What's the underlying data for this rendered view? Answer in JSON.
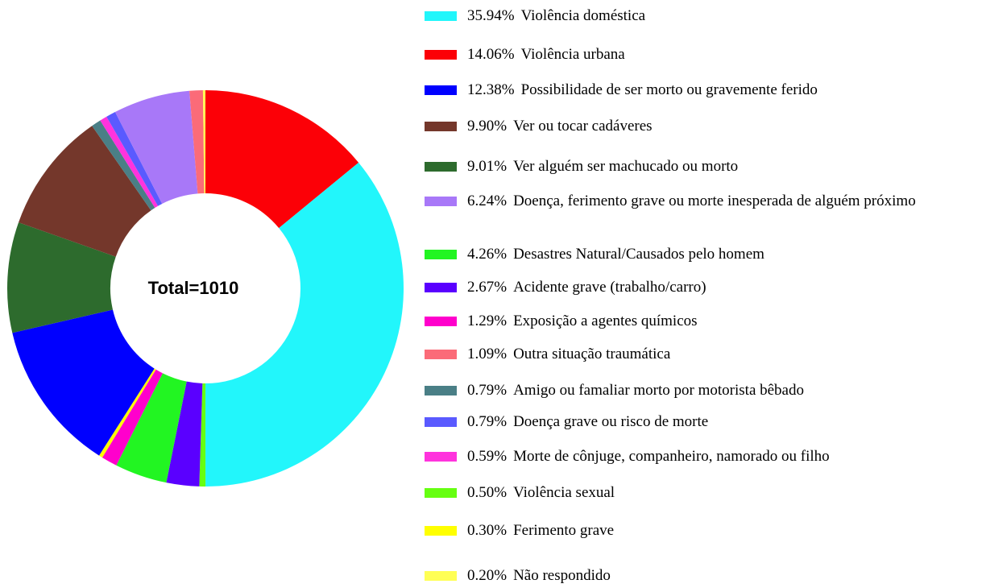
{
  "chart_data": {
    "type": "donut",
    "annotation": "Total=1010",
    "categories": [
      "Violência doméstica",
      "Violência urbana",
      "Possibilidade de ser morto ou gravemente ferido",
      "Ver ou tocar cadáveres",
      "Ver alguém ser machucado ou morto",
      "Doença, ferimento grave ou morte inesperada de alguém próximo",
      "Desastres Natural/Causados pelo homem",
      "Acidente grave (trabalho/carro)",
      "Exposição a agentes químicos",
      "Outra situação traumática",
      "Amigo ou famaliar morto por motorista bêbado",
      "Doença grave ou risco de morte",
      "Morte de cônjuge, companheiro, namorado ou filho",
      "Violência sexual",
      "Ferimento grave",
      "Não respondido"
    ],
    "values": [
      35.94,
      14.06,
      12.38,
      9.9,
      9.01,
      6.24,
      4.26,
      2.67,
      1.29,
      1.09,
      0.79,
      0.79,
      0.59,
      0.5,
      0.3,
      0.2
    ],
    "value_labels": [
      "35.94%",
      "14.06%",
      "12.38%",
      "9.90%",
      "9.01%",
      "6.24%",
      "4.26%",
      "2.67%",
      "1.29%",
      "1.09%",
      "0.79%",
      "0.79%",
      "0.59%",
      "0.50%",
      "0.30%",
      "0.20%"
    ],
    "colors": [
      "#22f6fb",
      "#fc0007",
      "#0000ff",
      "#74372b",
      "#2d6b2d",
      "#a878f8",
      "#22f522",
      "#5a00ff",
      "#ff00cc",
      "#fb6b78",
      "#4a7f86",
      "#5a5aff",
      "#ff33dd",
      "#66ff11",
      "#ffff00",
      "#ffff55"
    ]
  }
}
